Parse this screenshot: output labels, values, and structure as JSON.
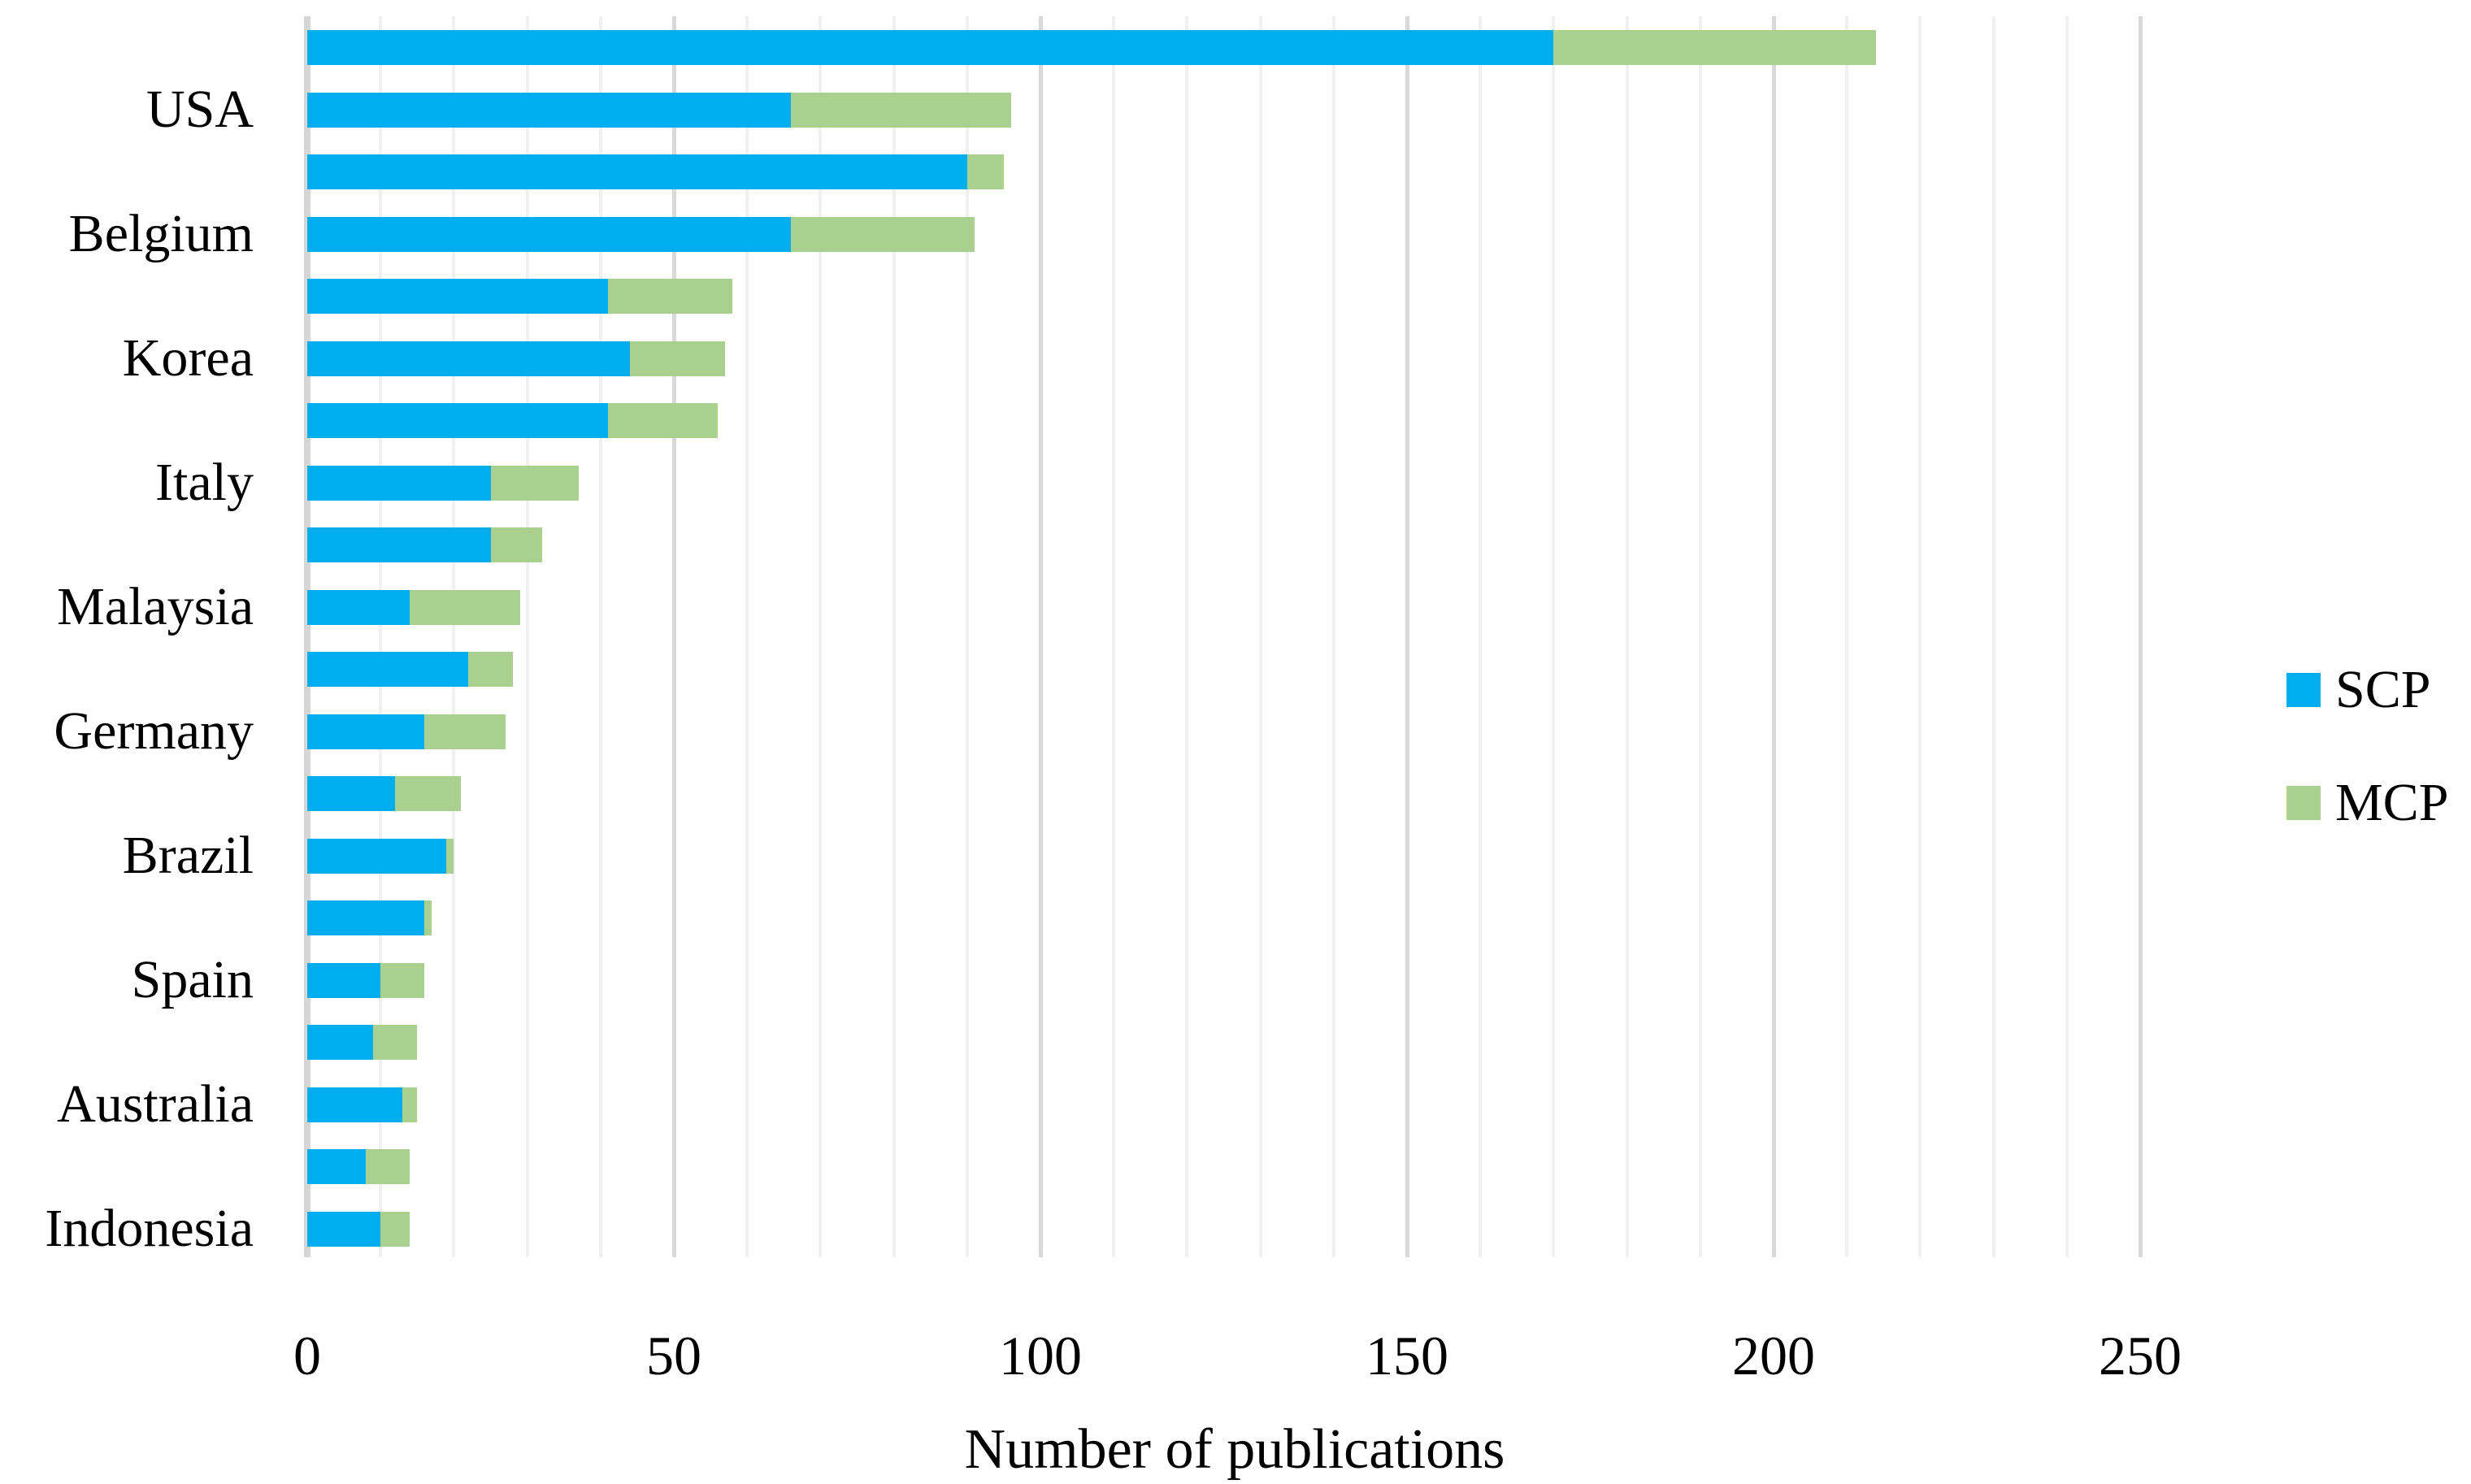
{
  "chart_data": {
    "type": "bar",
    "orientation": "horizontal",
    "stacked": true,
    "xlabel": "Number of publications",
    "xlim": [
      0,
      250
    ],
    "x_ticks": [
      0,
      50,
      100,
      150,
      200,
      250
    ],
    "gridlines": {
      "minor_step": 10,
      "major_step": 50,
      "shown": true
    },
    "legend_position": "right",
    "category_label_interval": 2,
    "categories": [
      "",
      "USA",
      "",
      "Belgium",
      "",
      "Korea",
      "",
      "Italy",
      "",
      "Malaysia",
      "",
      "Germany",
      "",
      "Brazil",
      "",
      "Spain",
      "",
      "Australia",
      "",
      "Indonesia"
    ],
    "series": [
      {
        "name": "SCP",
        "color": "#00AEEF",
        "values": [
          170,
          66,
          90,
          66,
          41,
          44,
          41,
          25,
          25,
          14,
          22,
          16,
          12,
          19,
          16,
          10,
          9,
          13,
          8,
          10
        ]
      },
      {
        "name": "MCP",
        "color": "#A9D08E",
        "values": [
          44,
          30,
          5,
          25,
          17,
          13,
          15,
          12,
          7,
          15,
          6,
          11,
          9,
          1,
          1,
          6,
          6,
          2,
          6,
          4
        ]
      }
    ]
  },
  "legend": {
    "scp_label": "SCP",
    "mcp_label": "MCP"
  },
  "colors": {
    "scp": "#00AEEF",
    "mcp": "#A9D08E",
    "grid_minor": "#F0F0F0",
    "grid_major": "#D9D9D9",
    "axis_line": "#D6D6D6",
    "text": "#000000"
  },
  "axis": {
    "x_title": "Number of publications"
  }
}
